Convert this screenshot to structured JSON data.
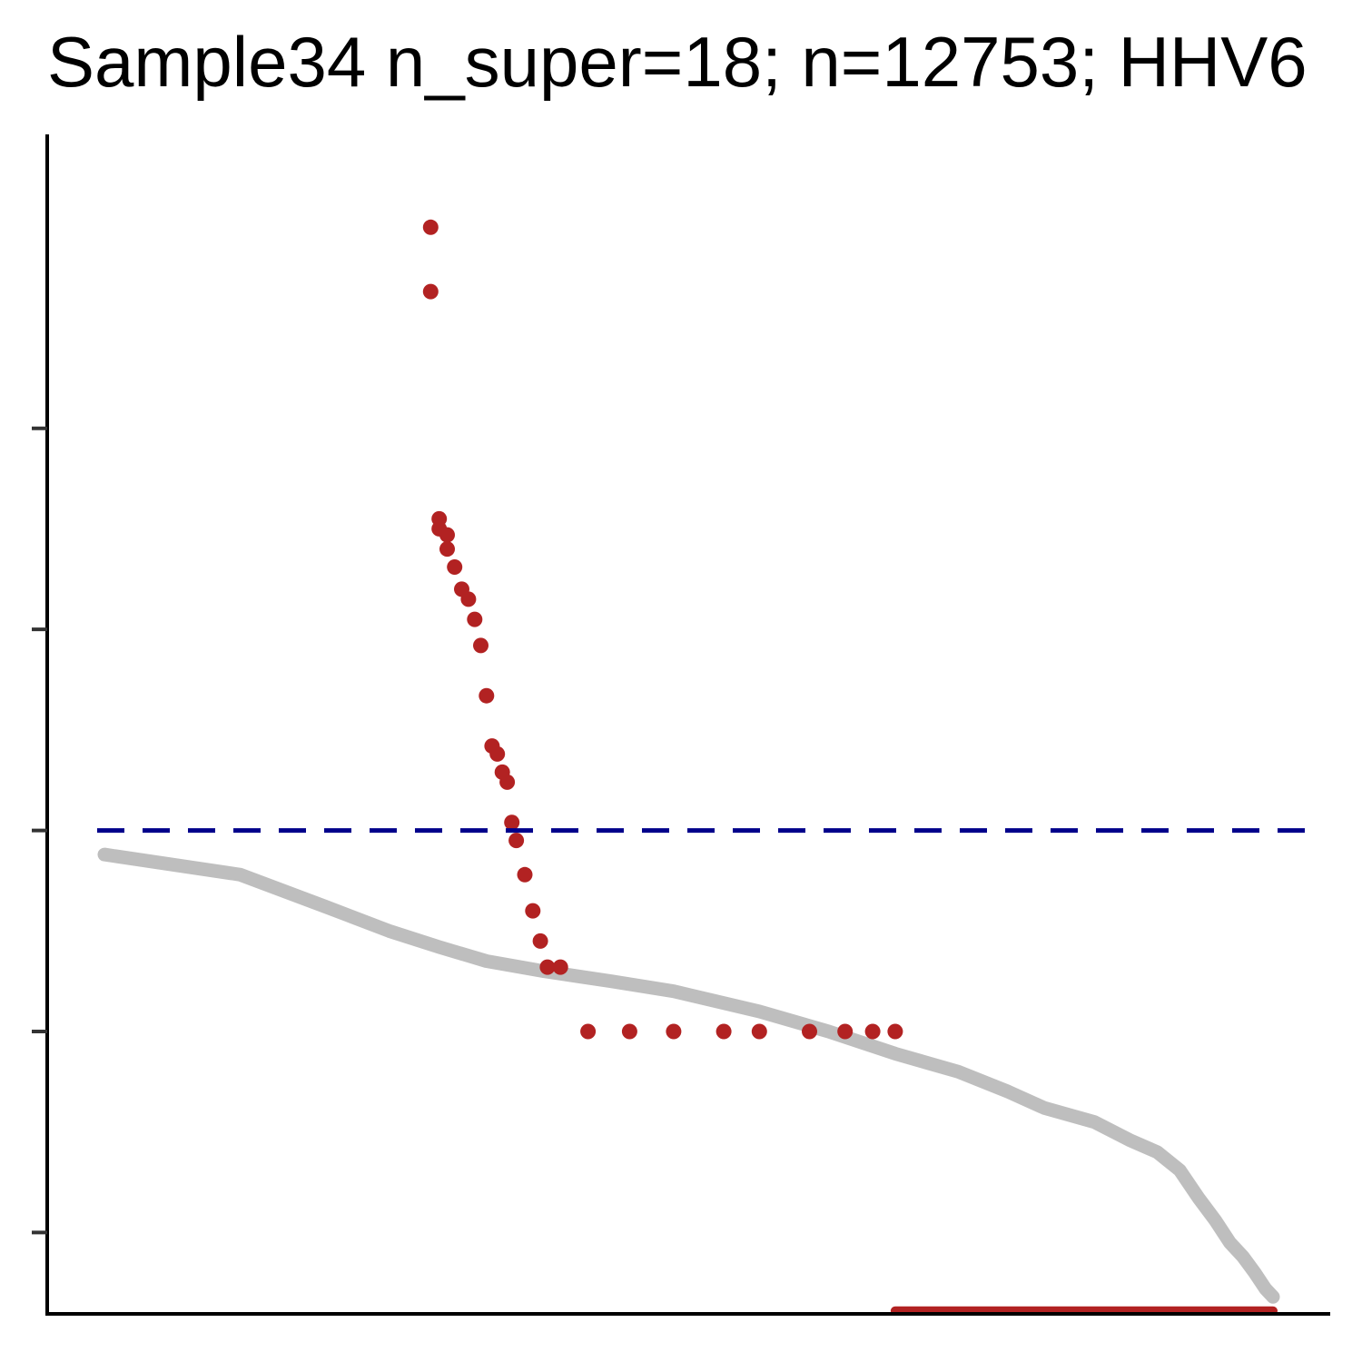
{
  "chart_data": {
    "type": "scatter",
    "title": "Sample34 n_super=18; n=12753; HHV6",
    "xlabel": "",
    "ylabel": "",
    "xlim": [
      1,
      12753
    ],
    "ylim": [
      -0.4,
      5.2
    ],
    "yticks": [
      0.0,
      1.0,
      2.0,
      3.0,
      4.0
    ],
    "show_tick_labels": false,
    "grid": false,
    "legend": "none",
    "threshold": {
      "y": 2.0,
      "style": "dashed",
      "color": "#00008B"
    },
    "colors": {
      "background": "#BEBEBE",
      "super": "#B22222",
      "axis": "#000000",
      "tick": "#333333"
    },
    "series": [
      {
        "role": "background",
        "color": "#BEBEBE",
        "x": [
          1,
          3,
          6,
          10,
          15,
          22,
          35,
          60,
          100,
          200,
          350,
          600,
          1000,
          1500,
          2000,
          3000,
          4000,
          5000,
          6000,
          7000,
          8000,
          9000,
          10000,
          11000,
          12000,
          12753
        ],
        "y": [
          1.88,
          1.78,
          1.62,
          1.5,
          1.42,
          1.35,
          1.3,
          1.25,
          1.2,
          1.1,
          1.0,
          0.89,
          0.8,
          0.7,
          0.62,
          0.55,
          0.46,
          0.4,
          0.31,
          0.17,
          0.06,
          -0.05,
          -0.12,
          -0.2,
          -0.28,
          -0.32
        ]
      },
      {
        "role": "super",
        "color": "#B22222",
        "x": [
          14,
          14,
          15,
          15,
          16,
          16,
          17,
          18,
          19,
          20,
          21,
          22,
          23,
          24,
          25,
          26,
          27,
          28,
          30,
          32
        ],
        "y": [
          5.0,
          4.68,
          3.55,
          3.5,
          3.47,
          3.4,
          3.31,
          3.2,
          3.15,
          3.05,
          2.92,
          2.67,
          2.42,
          2.38,
          2.29,
          2.24,
          2.04,
          1.95,
          1.78,
          1.6
        ]
      },
      {
        "role": "super",
        "color": "#B22222",
        "x": [
          34,
          36,
          40,
          50,
          70,
          100,
          150,
          200,
          300,
          400,
          500,
          600
        ],
        "y": [
          1.45,
          1.32,
          1.32,
          1.0,
          1.0,
          1.0,
          1.0,
          1.0,
          1.0,
          1.0,
          1.0,
          1.0
        ]
      },
      {
        "role": "super-baseline",
        "color": "#B22222",
        "x": [
          600,
          12753
        ],
        "y": [
          -0.39,
          -0.39
        ]
      }
    ]
  }
}
